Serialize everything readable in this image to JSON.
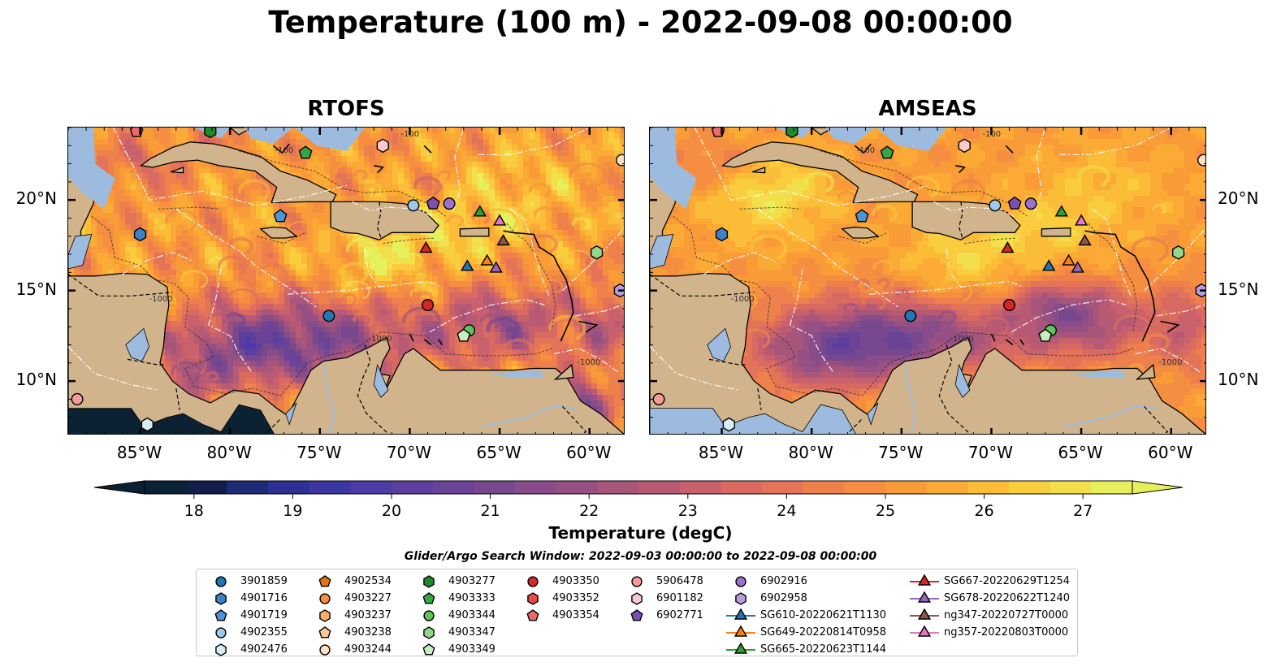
{
  "title": "Temperature (100 m) - 2022-09-08 00:00:00",
  "panels": [
    {
      "title": "RTOFS",
      "variant": "rtofs"
    },
    {
      "title": "AMSEAS",
      "variant": "amseas"
    }
  ],
  "axes": {
    "lon_range": [
      -89,
      -58
    ],
    "lat_range": [
      7,
      24
    ],
    "lon_ticks": [
      "85°W",
      "80°W",
      "75°W",
      "70°W",
      "65°W",
      "60°W"
    ],
    "lon_values": [
      -85,
      -80,
      -75,
      -70,
      -65,
      -60
    ],
    "lat_ticks": [
      "20°N",
      "15°N",
      "10°N"
    ],
    "lat_values": [
      20,
      15,
      10
    ]
  },
  "colorbar": {
    "label": "Temperature (degC)",
    "min": 17.5,
    "max": 27.5,
    "ticks": [
      "18",
      "19",
      "20",
      "21",
      "22",
      "23",
      "24",
      "25",
      "26",
      "27"
    ],
    "colors": [
      "#0a2033",
      "#131d4a",
      "#1f2a74",
      "#2d2f93",
      "#3c36a3",
      "#4d3aa6",
      "#5b3e9e",
      "#6a4396",
      "#78488f",
      "#874c89",
      "#975083",
      "#a8557c",
      "#b95a75",
      "#c9616d",
      "#d86a62",
      "#e47457",
      "#ee804b",
      "#f58e40",
      "#f99c38",
      "#fbab35",
      "#fbbc37",
      "#f9cd3e",
      "#f2df4b",
      "#e6f05c"
    ]
  },
  "contour_labels": [
    "-100",
    "-1000"
  ],
  "legend": {
    "title": "Glider/Argo Search Window: 2022-09-03 00:00:00 to 2022-09-08 00:00:00",
    "items": [
      {
        "label": "3901859",
        "marker": "circle",
        "color": "#1f77b4"
      },
      {
        "label": "4901716",
        "marker": "hexagon",
        "color": "#3d82c4"
      },
      {
        "label": "4901719",
        "marker": "pentagon",
        "color": "#4d96d6"
      },
      {
        "label": "4902355",
        "marker": "circle",
        "color": "#9ec9ea"
      },
      {
        "label": "4902476",
        "marker": "hexagon",
        "color": "#d8ecf8"
      },
      {
        "label": "4902534",
        "marker": "pentagon",
        "color": "#e6730e"
      },
      {
        "label": "4903227",
        "marker": "circle",
        "color": "#fd8d3c"
      },
      {
        "label": "4903237",
        "marker": "hexagon",
        "color": "#fdae6b"
      },
      {
        "label": "4903238",
        "marker": "pentagon",
        "color": "#fdc896"
      },
      {
        "label": "4903244",
        "marker": "circle",
        "color": "#fde0c0"
      },
      {
        "label": "4903277",
        "marker": "hexagon",
        "color": "#1e8a2e"
      },
      {
        "label": "4903333",
        "marker": "pentagon",
        "color": "#35a845"
      },
      {
        "label": "4903344",
        "marker": "circle",
        "color": "#5fc45c"
      },
      {
        "label": "4903347",
        "marker": "hexagon",
        "color": "#92d88a"
      },
      {
        "label": "4903349",
        "marker": "pentagon",
        "color": "#c8efbf"
      },
      {
        "label": "4903350",
        "marker": "circle",
        "color": "#d62728"
      },
      {
        "label": "4903352",
        "marker": "hexagon",
        "color": "#e84a4a"
      },
      {
        "label": "4903354",
        "marker": "pentagon",
        "color": "#f0696a"
      },
      {
        "label": "5906478",
        "marker": "circle",
        "color": "#f49a9a"
      },
      {
        "label": "6901182",
        "marker": "hexagon",
        "color": "#fac9c9"
      },
      {
        "label": "6902771",
        "marker": "pentagon",
        "color": "#7b4fb0"
      },
      {
        "label": "6902916",
        "marker": "circle",
        "color": "#9a72cc"
      },
      {
        "label": "6902958",
        "marker": "hexagon",
        "color": "#b99be0"
      },
      {
        "label": "SG610-20220621T1130",
        "marker": "triangle",
        "color": "#1f77b4",
        "line": true
      },
      {
        "label": "SG649-20220814T0958",
        "marker": "triangle",
        "color": "#ff7f0e",
        "line": true
      },
      {
        "label": "SG665-20220623T1144",
        "marker": "triangle",
        "color": "#2ca02c",
        "line": true
      },
      {
        "label": "SG667-20220629T1254",
        "marker": "triangle",
        "color": "#d62728",
        "line": true
      },
      {
        "label": "SG678-20220622T1240",
        "marker": "triangle",
        "color": "#9467bd",
        "line": true
      },
      {
        "label": "ng347-20220727T0000",
        "marker": "triangle",
        "color": "#8c564b",
        "line": true
      },
      {
        "label": "ng357-20220803T0000",
        "marker": "triangle",
        "color": "#e377c2",
        "line": true
      }
    ]
  },
  "observations": [
    {
      "label": "3901859",
      "lon": -74.5,
      "lat": 13.6
    },
    {
      "label": "4901716",
      "lon": -85.0,
      "lat": 18.1
    },
    {
      "label": "4901719",
      "lon": -77.2,
      "lat": 19.1
    },
    {
      "label": "4902355",
      "lon": -69.8,
      "lat": 19.7
    },
    {
      "label": "4902476",
      "lon": -84.6,
      "lat": 7.6
    },
    {
      "label": "4903244",
      "lon": -58.2,
      "lat": 22.2
    },
    {
      "label": "4903277",
      "lon": -81.1,
      "lat": 23.8
    },
    {
      "label": "4903333",
      "lon": -75.8,
      "lat": 22.6
    },
    {
      "label": "4903344",
      "lon": -66.7,
      "lat": 12.8
    },
    {
      "label": "4903347",
      "lon": -59.6,
      "lat": 17.1
    },
    {
      "label": "4903349",
      "lon": -67.0,
      "lat": 12.5
    },
    {
      "label": "4903350",
      "lon": -69.0,
      "lat": 14.2
    },
    {
      "label": "4903354",
      "lon": -85.2,
      "lat": 23.8
    },
    {
      "label": "5906478",
      "lon": -88.5,
      "lat": 9.0
    },
    {
      "label": "6901182",
      "lon": -71.5,
      "lat": 23.0
    },
    {
      "label": "6902771",
      "lon": -68.7,
      "lat": 19.8
    },
    {
      "label": "6902916",
      "lon": -67.8,
      "lat": 19.8
    },
    {
      "label": "6902958",
      "lon": -58.3,
      "lat": 15.0
    },
    {
      "label": "SG610-20220621T1130",
      "lon": -66.8,
      "lat": 16.3
    },
    {
      "label": "SG649-20220814T0958",
      "lon": -65.7,
      "lat": 16.6
    },
    {
      "label": "SG665-20220623T1144",
      "lon": -66.1,
      "lat": 19.3
    },
    {
      "label": "SG667-20220629T1254",
      "lon": -69.1,
      "lat": 17.3
    },
    {
      "label": "SG678-20220622T1240",
      "lon": -65.2,
      "lat": 16.2
    },
    {
      "label": "ng347-20220727T0000",
      "lon": -64.8,
      "lat": 17.7
    },
    {
      "label": "ng357-20220803T0000",
      "lon": -65.0,
      "lat": 18.8
    }
  ]
}
